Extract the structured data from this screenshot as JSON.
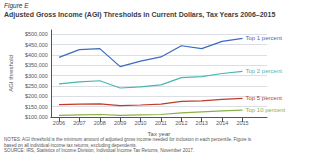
{
  "chart_data": {
    "type": "line",
    "title": "Adjusted Gross Income (AGI) Thresholds in Current Dollars, Tax Years 2006–2015",
    "annotations": [
      "Figure E",
      "NOTES: AGI threshold is the minimum amount of adjusted gross income needed for inclusion in each percentile. Figure is based on all individual income tax returns, excluding dependents.",
      "SOURCE: IRS, Statistics of Income Division, Individual Income Tax Returns, November 2017."
    ],
    "xlabel": "Tax year",
    "ylabel": "AGI threshold",
    "x": [
      2006,
      2007,
      2008,
      2009,
      2010,
      2011,
      2012,
      2013,
      2014,
      2015
    ],
    "series": [
      {
        "name": "Top 1 percent",
        "color": "#3a6bbf",
        "values": [
          388000,
          425000,
          430000,
          343000,
          370000,
          390000,
          444000,
          430000,
          465000,
          480000
        ]
      },
      {
        "name": "Top 2 percent",
        "color": "#4ab5b5",
        "values": [
          260000,
          270000,
          275000,
          240000,
          245000,
          255000,
          290000,
          295000,
          310000,
          320000
        ]
      },
      {
        "name": "Top 5 percent",
        "color": "#c0392b",
        "values": [
          160000,
          162000,
          163000,
          155000,
          158000,
          162000,
          175000,
          178000,
          185000,
          190000
        ]
      },
      {
        "name": "Top 10 percent",
        "color": "#8ab04a",
        "values": [
          108000,
          110000,
          112000,
          108000,
          110000,
          112000,
          120000,
          125000,
          130000,
          133000
        ]
      }
    ],
    "xlim": [
      2005.6,
      2016.2
    ],
    "xticks": [
      2006,
      2007,
      2008,
      2009,
      2010,
      2011,
      2012,
      2013,
      2014,
      2015
    ],
    "ylim": [
      100000,
      520000
    ],
    "yticks": [
      {
        "value": 100000,
        "label": "$100,000"
      },
      {
        "value": 150000,
        "label": "$150,000"
      },
      {
        "value": 200000,
        "label": "$200,000"
      },
      {
        "value": 250000,
        "label": "$250,000"
      },
      {
        "value": 300000,
        "label": "$300,000"
      },
      {
        "value": 350000,
        "label": "$350,000"
      },
      {
        "value": 400000,
        "label": "$400,000"
      },
      {
        "value": 450000,
        "label": "$450,000"
      },
      {
        "value": 500000,
        "label": "$500,000"
      }
    ],
    "grid": true
  }
}
